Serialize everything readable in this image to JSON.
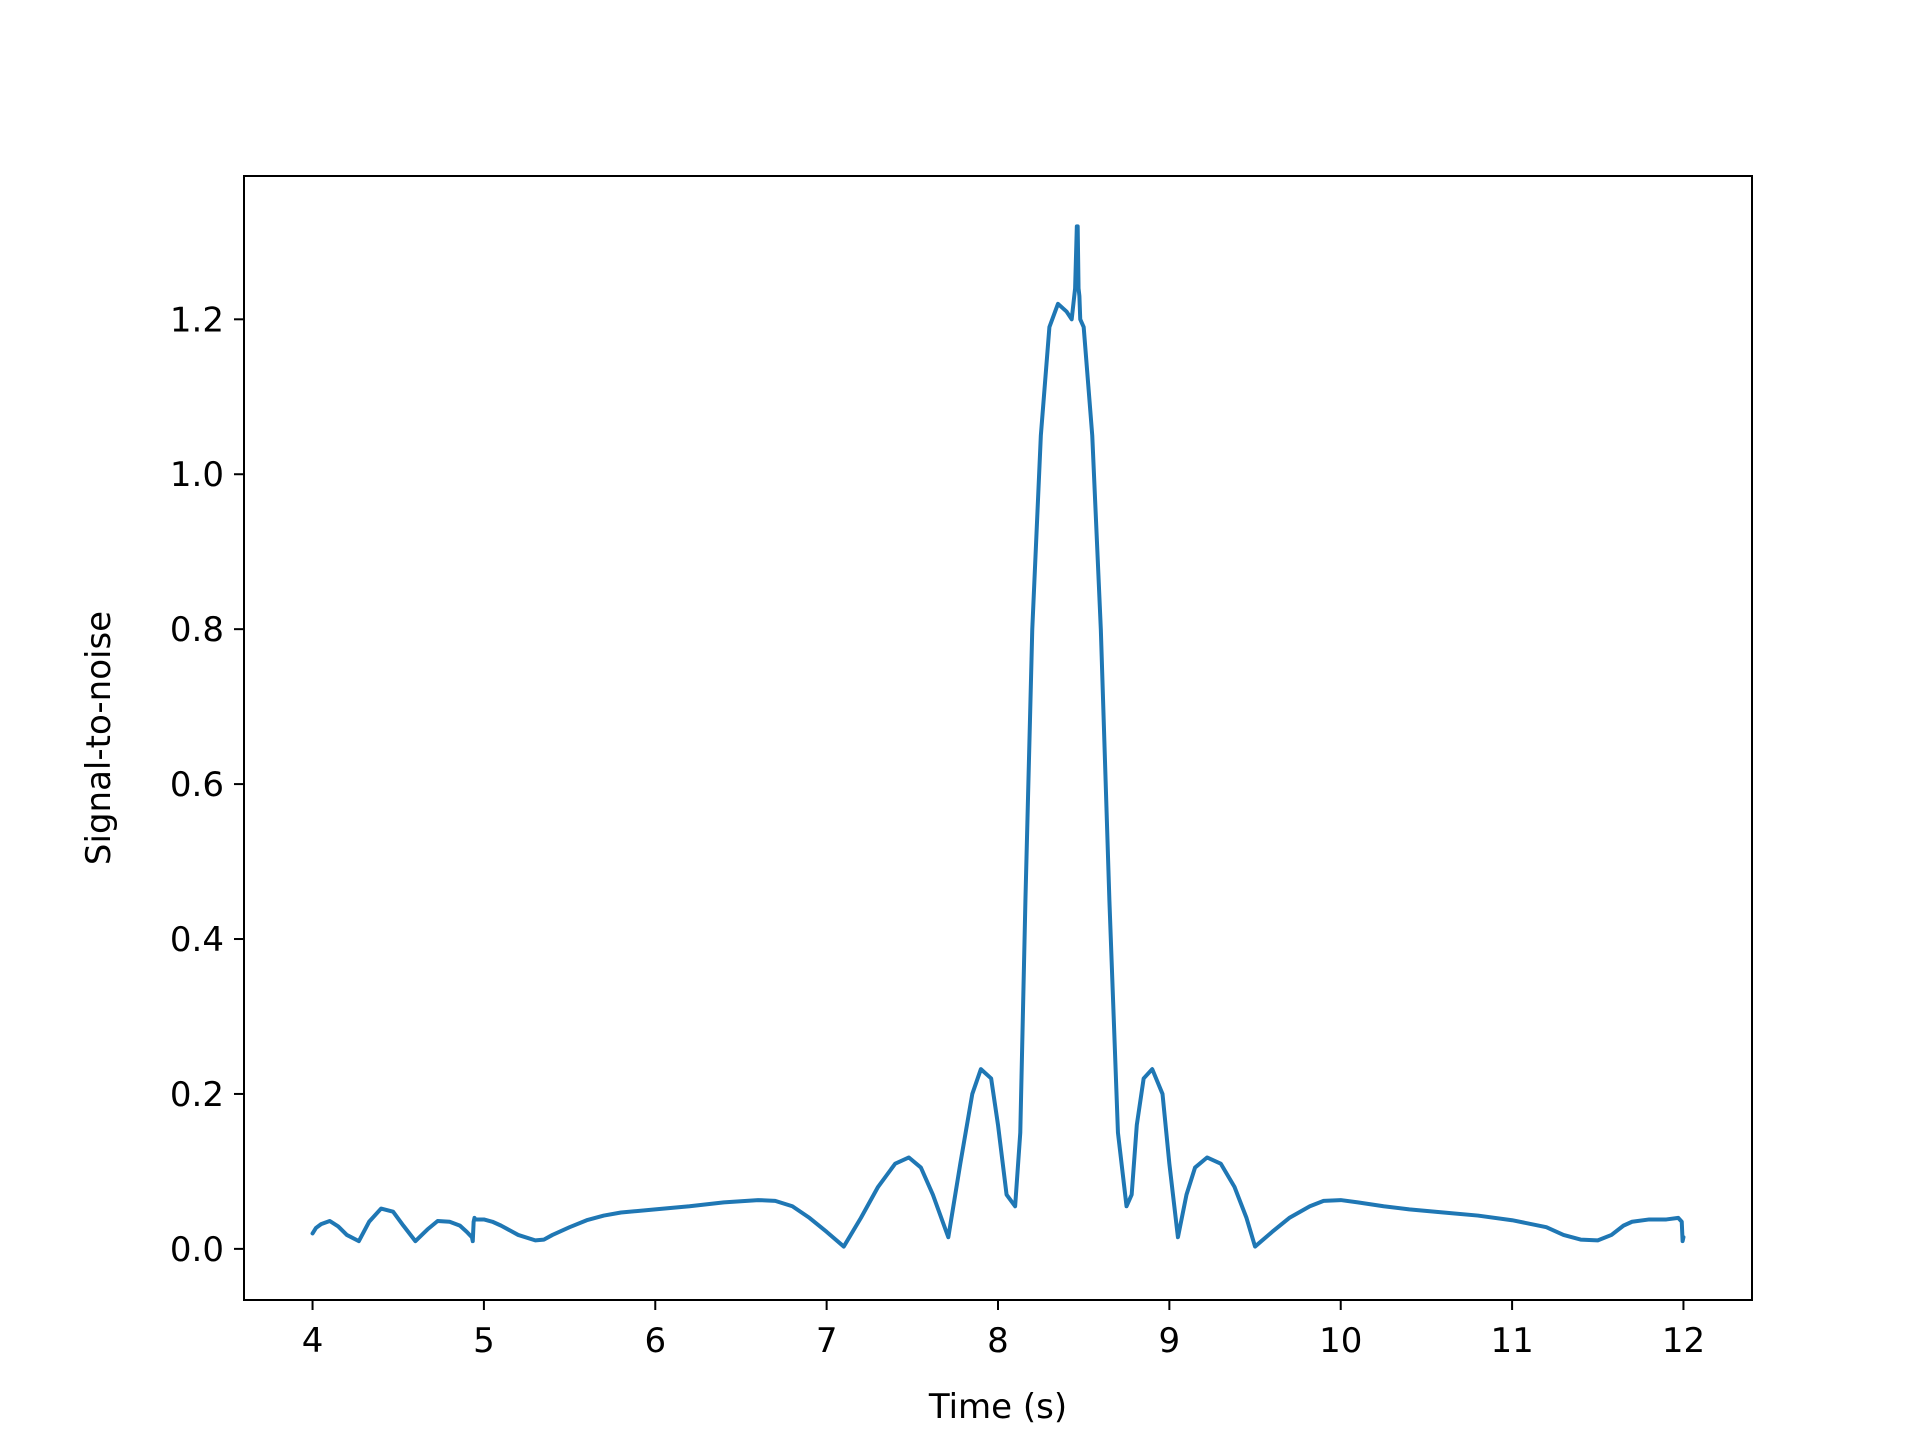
{
  "chart_data": {
    "type": "line",
    "title": "",
    "xlabel": "Time (s)",
    "ylabel": "Signal-to-noise",
    "xlim": [
      3.6,
      12.4
    ],
    "ylim": [
      -0.066,
      1.385
    ],
    "xticks": [
      4,
      5,
      6,
      7,
      8,
      9,
      10,
      11,
      12
    ],
    "xtick_labels": [
      "4",
      "5",
      "6",
      "7",
      "8",
      "9",
      "10",
      "11",
      "12"
    ],
    "yticks": [
      0.0,
      0.2,
      0.4,
      0.6,
      0.8,
      1.0,
      1.2
    ],
    "ytick_labels": [
      "0.0",
      "0.2",
      "0.4",
      "0.6",
      "0.8",
      "1.0",
      "1.2"
    ],
    "grid": false,
    "line_color": "#1f77b4",
    "series": [
      {
        "x": [
          4.0,
          4.02,
          4.05,
          4.1,
          4.15,
          4.2,
          4.27,
          4.33,
          4.4,
          4.47,
          4.53,
          4.6,
          4.67,
          4.73,
          4.8,
          4.86,
          4.9,
          4.93,
          4.935,
          4.94,
          4.945,
          4.95,
          5.0,
          5.05,
          5.1,
          5.2,
          5.3,
          5.35,
          5.4,
          5.5,
          5.6,
          5.7,
          5.8,
          6.0,
          6.2,
          6.4,
          6.6,
          6.7,
          6.8,
          6.9,
          7.0,
          7.1,
          7.2,
          7.3,
          7.4,
          7.48,
          7.55,
          7.62,
          7.71,
          7.78,
          7.85,
          7.9,
          7.96,
          8.0,
          8.05,
          8.1,
          8.13,
          8.16,
          8.2,
          8.25,
          8.3,
          8.35,
          8.4,
          8.43,
          8.45,
          8.46,
          8.465,
          8.47,
          8.475,
          8.48,
          8.5,
          8.55,
          8.6,
          8.65,
          8.7,
          8.75,
          8.78,
          8.81,
          8.85,
          8.9,
          8.96,
          9.0,
          9.05,
          9.1,
          9.15,
          9.22,
          9.3,
          9.38,
          9.45,
          9.5,
          9.6,
          9.7,
          9.82,
          9.9,
          10.0,
          10.1,
          10.25,
          10.4,
          10.6,
          10.8,
          11.0,
          11.2,
          11.3,
          11.4,
          11.5,
          11.58,
          11.65,
          11.7,
          11.8,
          11.9,
          11.97,
          11.99,
          11.995,
          12.0
        ],
        "y": [
          0.02,
          0.027,
          0.032,
          0.036,
          0.029,
          0.018,
          0.01,
          0.035,
          0.052,
          0.048,
          0.03,
          0.01,
          0.025,
          0.036,
          0.035,
          0.03,
          0.022,
          0.015,
          0.01,
          0.035,
          0.04,
          0.038,
          0.038,
          0.035,
          0.03,
          0.018,
          0.011,
          0.012,
          0.018,
          0.028,
          0.037,
          0.043,
          0.047,
          0.051,
          0.055,
          0.06,
          0.063,
          0.062,
          0.055,
          0.04,
          0.022,
          0.003,
          0.04,
          0.08,
          0.11,
          0.118,
          0.105,
          0.07,
          0.015,
          0.11,
          0.2,
          0.232,
          0.22,
          0.16,
          0.07,
          0.055,
          0.15,
          0.45,
          0.8,
          1.05,
          1.19,
          1.22,
          1.21,
          1.2,
          1.24,
          1.32,
          1.32,
          1.24,
          1.23,
          1.2,
          1.19,
          1.05,
          0.8,
          0.45,
          0.15,
          0.055,
          0.07,
          0.16,
          0.22,
          0.232,
          0.2,
          0.11,
          0.015,
          0.07,
          0.105,
          0.118,
          0.11,
          0.08,
          0.04,
          0.003,
          0.022,
          0.04,
          0.055,
          0.062,
          0.063,
          0.06,
          0.055,
          0.051,
          0.047,
          0.043,
          0.037,
          0.028,
          0.018,
          0.012,
          0.011,
          0.018,
          0.03,
          0.035,
          0.038,
          0.038,
          0.04,
          0.035,
          0.01,
          0.015
        ]
      }
    ]
  }
}
